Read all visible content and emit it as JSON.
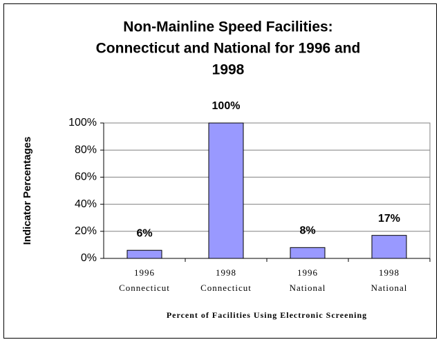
{
  "chart_data": {
    "type": "bar",
    "title": [
      "Non-Mainline Speed Facilities:",
      "Connecticut and National for 1996 and",
      "1998"
    ],
    "categories": [
      [
        "1996",
        "Connecticut"
      ],
      [
        "1998",
        "Connecticut"
      ],
      [
        "1996",
        "National"
      ],
      [
        "1998",
        "National"
      ]
    ],
    "values": [
      6,
      100,
      8,
      17
    ],
    "value_labels": [
      "6%",
      "100%",
      "8%",
      "17%"
    ],
    "color": "#9999ff",
    "ylabel": "Indicator Percentages",
    "xlabel": "Percent of Facilities Using Electronic Screening",
    "ylim": [
      0,
      100
    ],
    "yticks": [
      {
        "value": 0,
        "label": "0%"
      },
      {
        "value": 20,
        "label": "20%"
      },
      {
        "value": 40,
        "label": "40%"
      },
      {
        "value": 60,
        "label": "60%"
      },
      {
        "value": 80,
        "label": "80%"
      },
      {
        "value": 100,
        "label": "100%"
      }
    ],
    "grid": true
  }
}
